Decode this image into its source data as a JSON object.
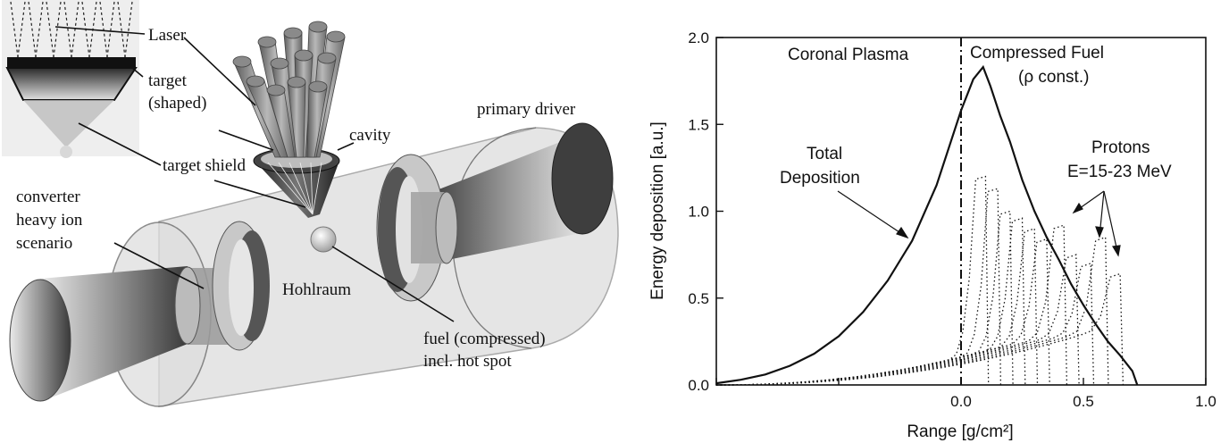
{
  "diagram": {
    "labels": {
      "laser": "Laser",
      "target_shaped_1": "target",
      "target_shaped_2": "(shaped)",
      "cavity": "cavity",
      "primary_driver": "primary driver",
      "target_shield": "target shield",
      "converter_1": "converter",
      "converter_2": "heavy ion",
      "converter_3": "scenario",
      "hohlraum": "Hohlraum",
      "fuel_1": "fuel (compressed)",
      "fuel_2": "incl. hot spot"
    }
  },
  "chart_data": {
    "type": "line",
    "xlabel": "Range [g/cm²]",
    "ylabel": "Energy deposition [a.u.]",
    "xlim": [
      -1.0,
      1.0
    ],
    "ylim": [
      0.0,
      2.0
    ],
    "x_ticks": [
      -1.0,
      -0.5,
      0.0,
      0.5,
      1.0
    ],
    "x_tick_labels": [
      "",
      "",
      "0.0",
      "0.5",
      "1.0"
    ],
    "y_ticks": [
      0.0,
      0.5,
      1.0,
      1.5,
      2.0
    ],
    "y_tick_labels": [
      "0.0",
      "0.5",
      "1.0",
      "1.5",
      "2.0"
    ],
    "divider_x": 0.0,
    "annotations": {
      "coronal": "Coronal Plasma",
      "compressed_1": "Compressed Fuel",
      "compressed_2": "(ρ const.)",
      "total_1": "Total",
      "total_2": "Deposition",
      "protons_1": "Protons",
      "protons_2": "E=15-23 MeV"
    },
    "series": [
      {
        "name": "Total Deposition",
        "style": "solid",
        "x": [
          -1.0,
          -0.9,
          -0.8,
          -0.7,
          -0.6,
          -0.5,
          -0.4,
          -0.3,
          -0.2,
          -0.1,
          0.0,
          0.05,
          0.09,
          0.12,
          0.16,
          0.2,
          0.25,
          0.3,
          0.35,
          0.4,
          0.45,
          0.5,
          0.55,
          0.6,
          0.65,
          0.7,
          0.72
        ],
        "y": [
          0.01,
          0.03,
          0.06,
          0.11,
          0.18,
          0.28,
          0.42,
          0.6,
          0.83,
          1.15,
          1.58,
          1.76,
          1.83,
          1.72,
          1.55,
          1.4,
          1.18,
          1.0,
          0.85,
          0.72,
          0.58,
          0.46,
          0.35,
          0.25,
          0.17,
          0.08,
          0.0
        ]
      }
    ],
    "proton_curves": [
      {
        "peak_x": 0.1,
        "peak_y": 1.2,
        "base": 0.2
      },
      {
        "peak_x": 0.15,
        "peak_y": 1.13,
        "base": 0.22
      },
      {
        "peak_x": 0.2,
        "peak_y": 1.0,
        "base": 0.24
      },
      {
        "peak_x": 0.25,
        "peak_y": 0.96,
        "base": 0.26
      },
      {
        "peak_x": 0.3,
        "peak_y": 0.9,
        "base": 0.28
      },
      {
        "peak_x": 0.35,
        "peak_y": 0.84,
        "base": 0.3
      },
      {
        "peak_x": 0.42,
        "peak_y": 0.92,
        "base": 0.32
      },
      {
        "peak_x": 0.47,
        "peak_y": 0.75,
        "base": 0.33
      },
      {
        "peak_x": 0.53,
        "peak_y": 0.7,
        "base": 0.34
      },
      {
        "peak_x": 0.59,
        "peak_y": 0.85,
        "base": 0.35
      },
      {
        "peak_x": 0.65,
        "peak_y": 0.64,
        "base": 0.36
      }
    ]
  }
}
